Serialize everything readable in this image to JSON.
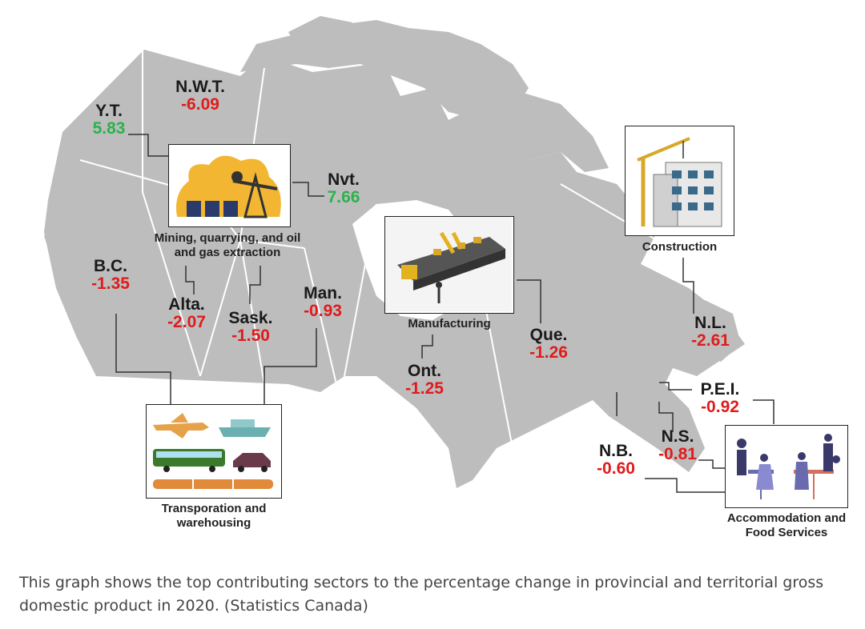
{
  "provinces": {
    "yt": {
      "abbr": "Y.T.",
      "value": "5.83"
    },
    "nwt": {
      "abbr": "N.W.T.",
      "value": "-6.09"
    },
    "nvt": {
      "abbr": "Nvt.",
      "value": "7.66"
    },
    "bc": {
      "abbr": "B.C.",
      "value": "-1.35"
    },
    "alta": {
      "abbr": "Alta.",
      "value": "-2.07"
    },
    "sask": {
      "abbr": "Sask.",
      "value": "-1.50"
    },
    "man": {
      "abbr": "Man.",
      "value": "-0.93"
    },
    "ont": {
      "abbr": "Ont.",
      "value": "-1.25"
    },
    "que": {
      "abbr": "Que.",
      "value": "-1.26"
    },
    "nl": {
      "abbr": "N.L.",
      "value": "-2.61"
    },
    "pei": {
      "abbr": "P.E.I.",
      "value": "-0.92"
    },
    "ns": {
      "abbr": "N.S.",
      "value": "-0.81"
    },
    "nb": {
      "abbr": "N.B.",
      "value": "-0.60"
    }
  },
  "sectors": {
    "mining": "Mining, quarrying, and oil and gas extraction",
    "manufacturing": "Manufacturing",
    "construction": "Construction",
    "transportation": "Transporation and warehousing",
    "accommodation": "Accommodation and Food Services"
  },
  "caption": "This graph shows the top contributing sectors to the percentage change in provincial and territorial gross domestic product in 2020. (Statistics Canada)",
  "colors": {
    "land": "#bdbdbd",
    "border": "#ffffff",
    "negative": "#e01b1b",
    "positive": "#2bb24c"
  }
}
